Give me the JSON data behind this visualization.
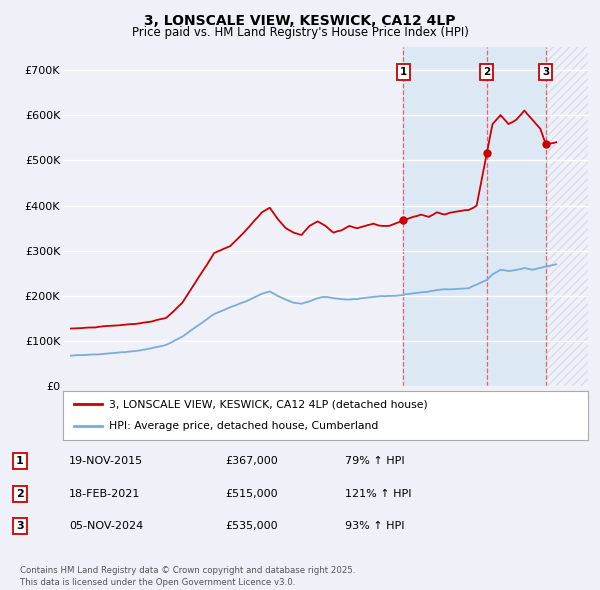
{
  "title": "3, LONSCALE VIEW, KESWICK, CA12 4LP",
  "subtitle": "Price paid vs. HM Land Registry's House Price Index (HPI)",
  "ylim": [
    0,
    750000
  ],
  "yticks": [
    0,
    100000,
    200000,
    300000,
    400000,
    500000,
    600000,
    700000
  ],
  "ytick_labels": [
    "£0",
    "£100K",
    "£200K",
    "£300K",
    "£400K",
    "£500K",
    "£600K",
    "£700K"
  ],
  "xlim_start": 1994.5,
  "xlim_end": 2027.5,
  "xticks": [
    1995,
    1996,
    1997,
    1998,
    1999,
    2000,
    2001,
    2002,
    2003,
    2004,
    2005,
    2006,
    2007,
    2008,
    2009,
    2010,
    2011,
    2012,
    2013,
    2014,
    2015,
    2016,
    2017,
    2018,
    2019,
    2020,
    2021,
    2022,
    2023,
    2024,
    2025,
    2026,
    2027
  ],
  "red_color": "#cc0000",
  "blue_color": "#7aadda",
  "vline_color": "#dd6666",
  "background_color": "#f0f0f8",
  "grid_color": "#ffffff",
  "shaded_color": "#dde8f5",
  "legend_label_red": "3, LONSCALE VIEW, KESWICK, CA12 4LP (detached house)",
  "legend_label_blue": "HPI: Average price, detached house, Cumberland",
  "sale1_date": 2015.9,
  "sale1_price": 367000,
  "sale1_label": "1",
  "sale2_date": 2021.13,
  "sale2_price": 515000,
  "sale2_label": "2",
  "sale3_date": 2024.85,
  "sale3_price": 535000,
  "sale3_label": "3",
  "table_data": [
    [
      "1",
      "19-NOV-2015",
      "£367,000",
      "79% ↑ HPI"
    ],
    [
      "2",
      "18-FEB-2021",
      "£515,000",
      "121% ↑ HPI"
    ],
    [
      "3",
      "05-NOV-2024",
      "£535,000",
      "93% ↑ HPI"
    ]
  ],
  "footnote": "Contains HM Land Registry data © Crown copyright and database right 2025.\nThis data is licensed under the Open Government Licence v3.0."
}
